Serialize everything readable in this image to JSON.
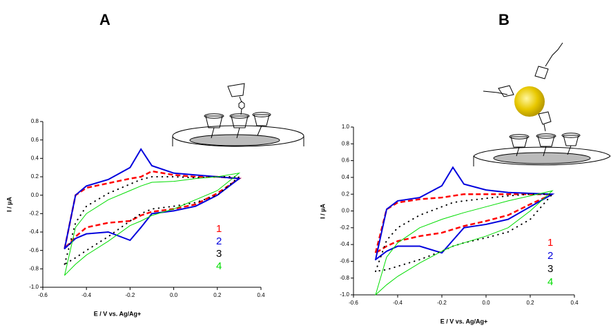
{
  "chart_data": [
    {
      "type": "line",
      "title": "A",
      "x_label": "E / V vs. Ag/Ag+",
      "y_label": "I / µA",
      "xlim": [
        -0.6,
        0.4
      ],
      "xticks": [
        -0.6,
        -0.4,
        -0.2,
        {
          "value": 0,
          "label": "0.0"
        },
        0.2,
        0.4
      ],
      "ylim": [
        -1.0,
        0.8
      ],
      "yticks": [
        {
          "value": -1,
          "label": "-1.0"
        },
        -0.8,
        -0.6,
        -0.4,
        -0.2,
        {
          "value": 0,
          "label": "0.0"
        },
        0.2,
        0.4,
        0.6,
        0.8
      ],
      "x": [
        -0.5,
        -0.45,
        -0.4,
        -0.3,
        -0.2,
        -0.15,
        -0.1,
        0,
        0.1,
        0.2,
        0.3,
        0.2,
        0.1,
        0,
        -0.1,
        -0.15,
        -0.2,
        -0.3,
        -0.4,
        -0.45,
        -0.5
      ],
      "series": [
        {
          "name": "1",
          "color": "#ff0000",
          "dash": "dashed",
          "values": [
            -0.58,
            0.0,
            0.08,
            0.13,
            0.18,
            0.2,
            0.26,
            0.22,
            0.2,
            0.2,
            0.18,
            0.02,
            -0.1,
            -0.15,
            -0.18,
            -0.22,
            -0.28,
            -0.3,
            -0.35,
            -0.45,
            -0.58
          ]
        },
        {
          "name": "2",
          "color": "#0000dd",
          "dash": "solid",
          "values": [
            -0.58,
            0.0,
            0.1,
            0.17,
            0.3,
            0.5,
            0.32,
            0.24,
            0.22,
            0.2,
            0.18,
            0.0,
            -0.12,
            -0.17,
            -0.2,
            -0.35,
            -0.49,
            -0.4,
            -0.42,
            -0.47,
            -0.58
          ]
        },
        {
          "name": "3",
          "color": "#000000",
          "dash": "dotted",
          "values": [
            -0.75,
            -0.3,
            -0.12,
            0.02,
            0.12,
            0.17,
            0.2,
            0.2,
            0.19,
            0.2,
            0.2,
            0.0,
            -0.08,
            -0.12,
            -0.15,
            -0.2,
            -0.28,
            -0.45,
            -0.6,
            -0.68,
            -0.75
          ]
        },
        {
          "name": "4",
          "color": "#00dd00",
          "dash": "thin",
          "values": [
            -0.87,
            -0.35,
            -0.2,
            -0.05,
            0.05,
            0.1,
            0.14,
            0.15,
            0.18,
            0.2,
            0.24,
            0.05,
            -0.05,
            -0.15,
            -0.22,
            -0.28,
            -0.33,
            -0.5,
            -0.65,
            -0.75,
            -0.87
          ]
        }
      ]
    },
    {
      "type": "line",
      "title": "B",
      "x_label": "E / V vs. Ag/Ag+",
      "y_label": "I / µA",
      "xlim": [
        -0.6,
        0.4
      ],
      "xticks": [
        -0.6,
        -0.4,
        -0.2,
        {
          "value": 0,
          "label": "0.0"
        },
        0.2,
        0.4
      ],
      "ylim": [
        -1.0,
        1.0
      ],
      "yticks": [
        {
          "value": -1,
          "label": "-1.0"
        },
        -0.8,
        -0.6,
        -0.4,
        -0.2,
        {
          "value": 0,
          "label": "0.0"
        },
        0.2,
        0.4,
        0.6,
        0.8,
        {
          "value": 1,
          "label": "1.0"
        }
      ],
      "x": [
        -0.5,
        -0.45,
        -0.4,
        -0.3,
        -0.2,
        -0.15,
        -0.1,
        0,
        0.1,
        0.2,
        0.3,
        0.2,
        0.1,
        0,
        -0.1,
        -0.15,
        -0.2,
        -0.3,
        -0.4,
        -0.45,
        -0.5
      ],
      "series": [
        {
          "name": "1",
          "color": "#ff0000",
          "dash": "dashed",
          "values": [
            -0.5,
            0.02,
            0.1,
            0.14,
            0.16,
            0.18,
            0.2,
            0.2,
            0.2,
            0.2,
            0.2,
            0.08,
            -0.05,
            -0.12,
            -0.18,
            -0.22,
            -0.26,
            -0.3,
            -0.36,
            -0.42,
            -0.5
          ]
        },
        {
          "name": "2",
          "color": "#0000dd",
          "dash": "solid",
          "values": [
            -0.58,
            0.02,
            0.12,
            0.16,
            0.3,
            0.52,
            0.32,
            0.25,
            0.22,
            0.21,
            0.2,
            0.05,
            -0.1,
            -0.16,
            -0.2,
            -0.35,
            -0.5,
            -0.42,
            -0.42,
            -0.48,
            -0.58
          ]
        },
        {
          "name": "3",
          "color": "#000000",
          "dash": "dotted",
          "values": [
            -0.72,
            -0.35,
            -0.2,
            -0.05,
            0.05,
            0.1,
            0.12,
            0.15,
            0.18,
            0.2,
            0.2,
            -0.1,
            -0.25,
            -0.32,
            -0.38,
            -0.42,
            -0.48,
            -0.58,
            -0.66,
            -0.7,
            -0.72
          ]
        },
        {
          "name": "4",
          "color": "#00dd00",
          "dash": "thin",
          "values": [
            -1.0,
            -0.55,
            -0.38,
            -0.2,
            -0.1,
            -0.06,
            -0.02,
            0.05,
            0.12,
            0.18,
            0.24,
            0.0,
            -0.2,
            -0.3,
            -0.38,
            -0.42,
            -0.48,
            -0.62,
            -0.78,
            -0.88,
            -1.0
          ]
        }
      ]
    }
  ]
}
